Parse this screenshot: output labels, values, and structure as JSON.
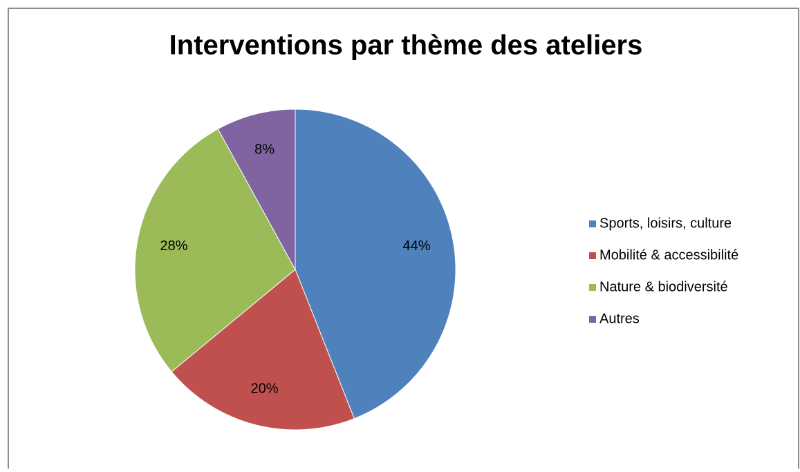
{
  "chart_data": {
    "type": "pie",
    "title": "Interventions par thème des ateliers",
    "categories": [
      "Sports, loisirs, culture",
      "Mobilité & accessibilité",
      "Nature & biodiversité",
      "Autres"
    ],
    "values": [
      44,
      20,
      28,
      8
    ],
    "value_labels": [
      "44%",
      "20%",
      "28%",
      "8%"
    ],
    "colors": [
      "#4f81bd",
      "#c0504d",
      "#9bbb59",
      "#8064a2"
    ],
    "legend": "right"
  }
}
